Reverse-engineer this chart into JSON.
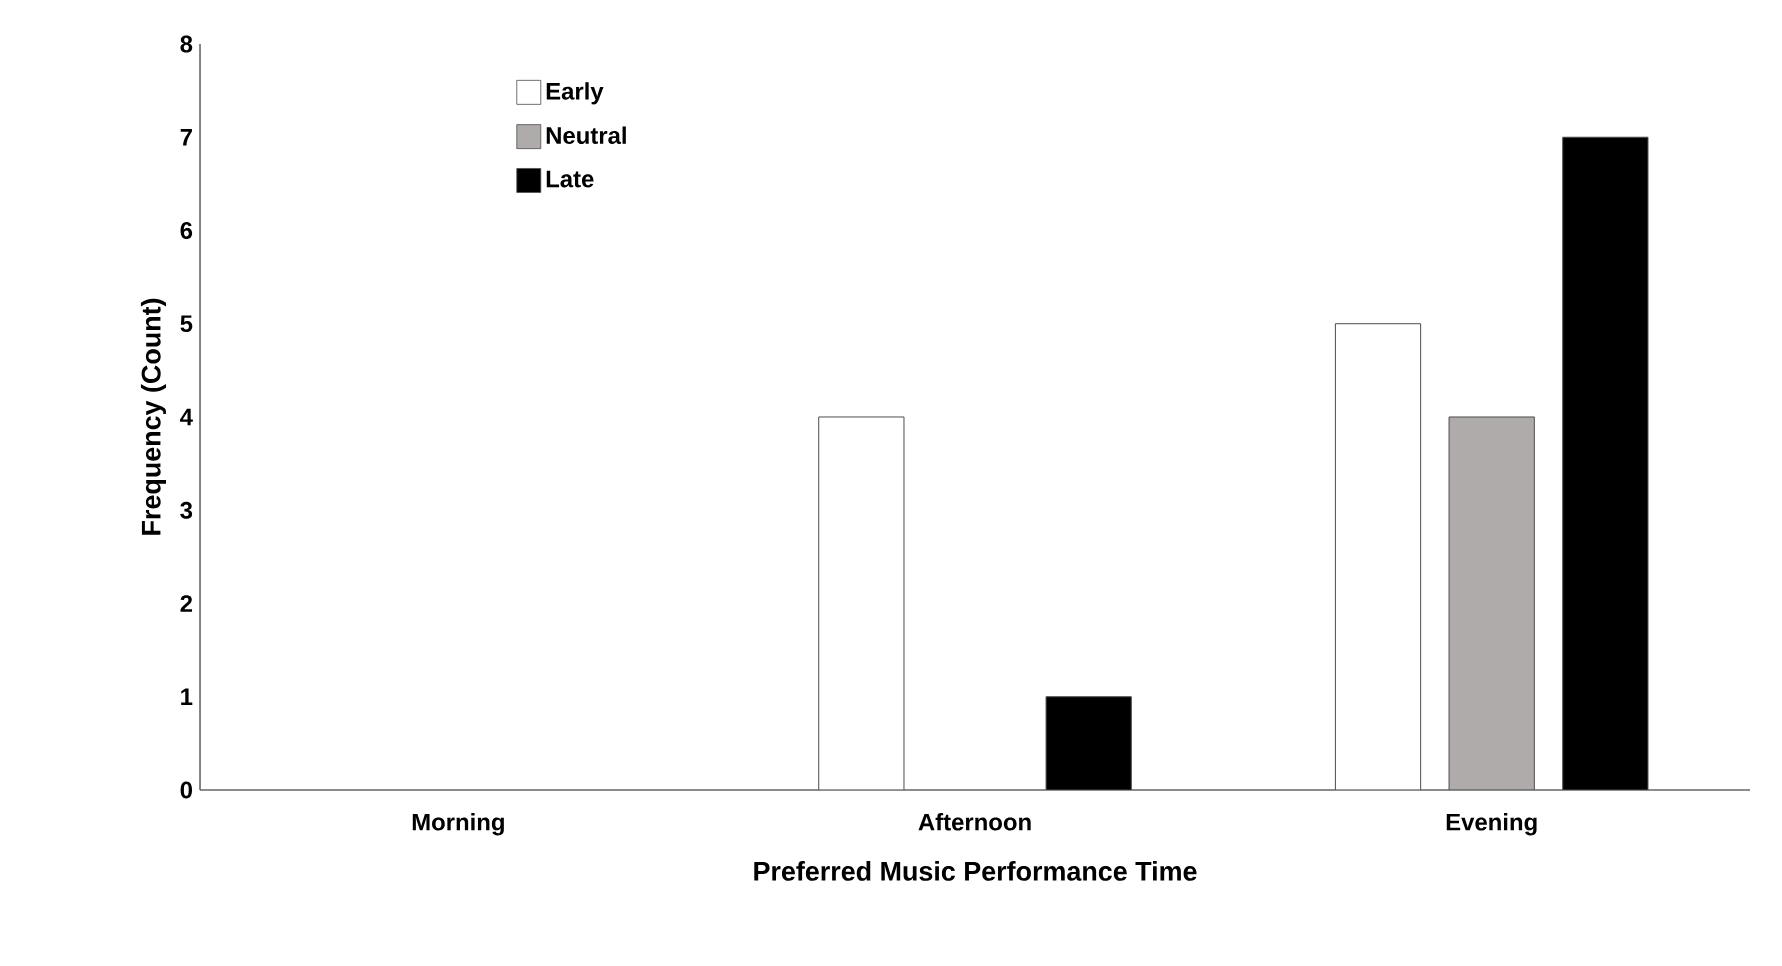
{
  "chart_data": {
    "type": "bar",
    "xlabel": "Preferred Music Performance Time",
    "ylabel": "Frequency (Count)",
    "categories": [
      "Morning",
      "Afternoon",
      "Evening"
    ],
    "series": [
      {
        "name": "Early",
        "color": "#ffffff",
        "values": [
          0,
          4,
          5
        ]
      },
      {
        "name": "Neutral",
        "color": "#afabab",
        "values": [
          0,
          0,
          4
        ]
      },
      {
        "name": "Late",
        "color": "#000000",
        "values": [
          0,
          1,
          7
        ]
      }
    ],
    "ylim": [
      0,
      8
    ],
    "yticks": [
      0,
      1,
      2,
      3,
      4,
      5,
      6,
      7,
      8
    ],
    "grid": false,
    "legend": "top left"
  }
}
